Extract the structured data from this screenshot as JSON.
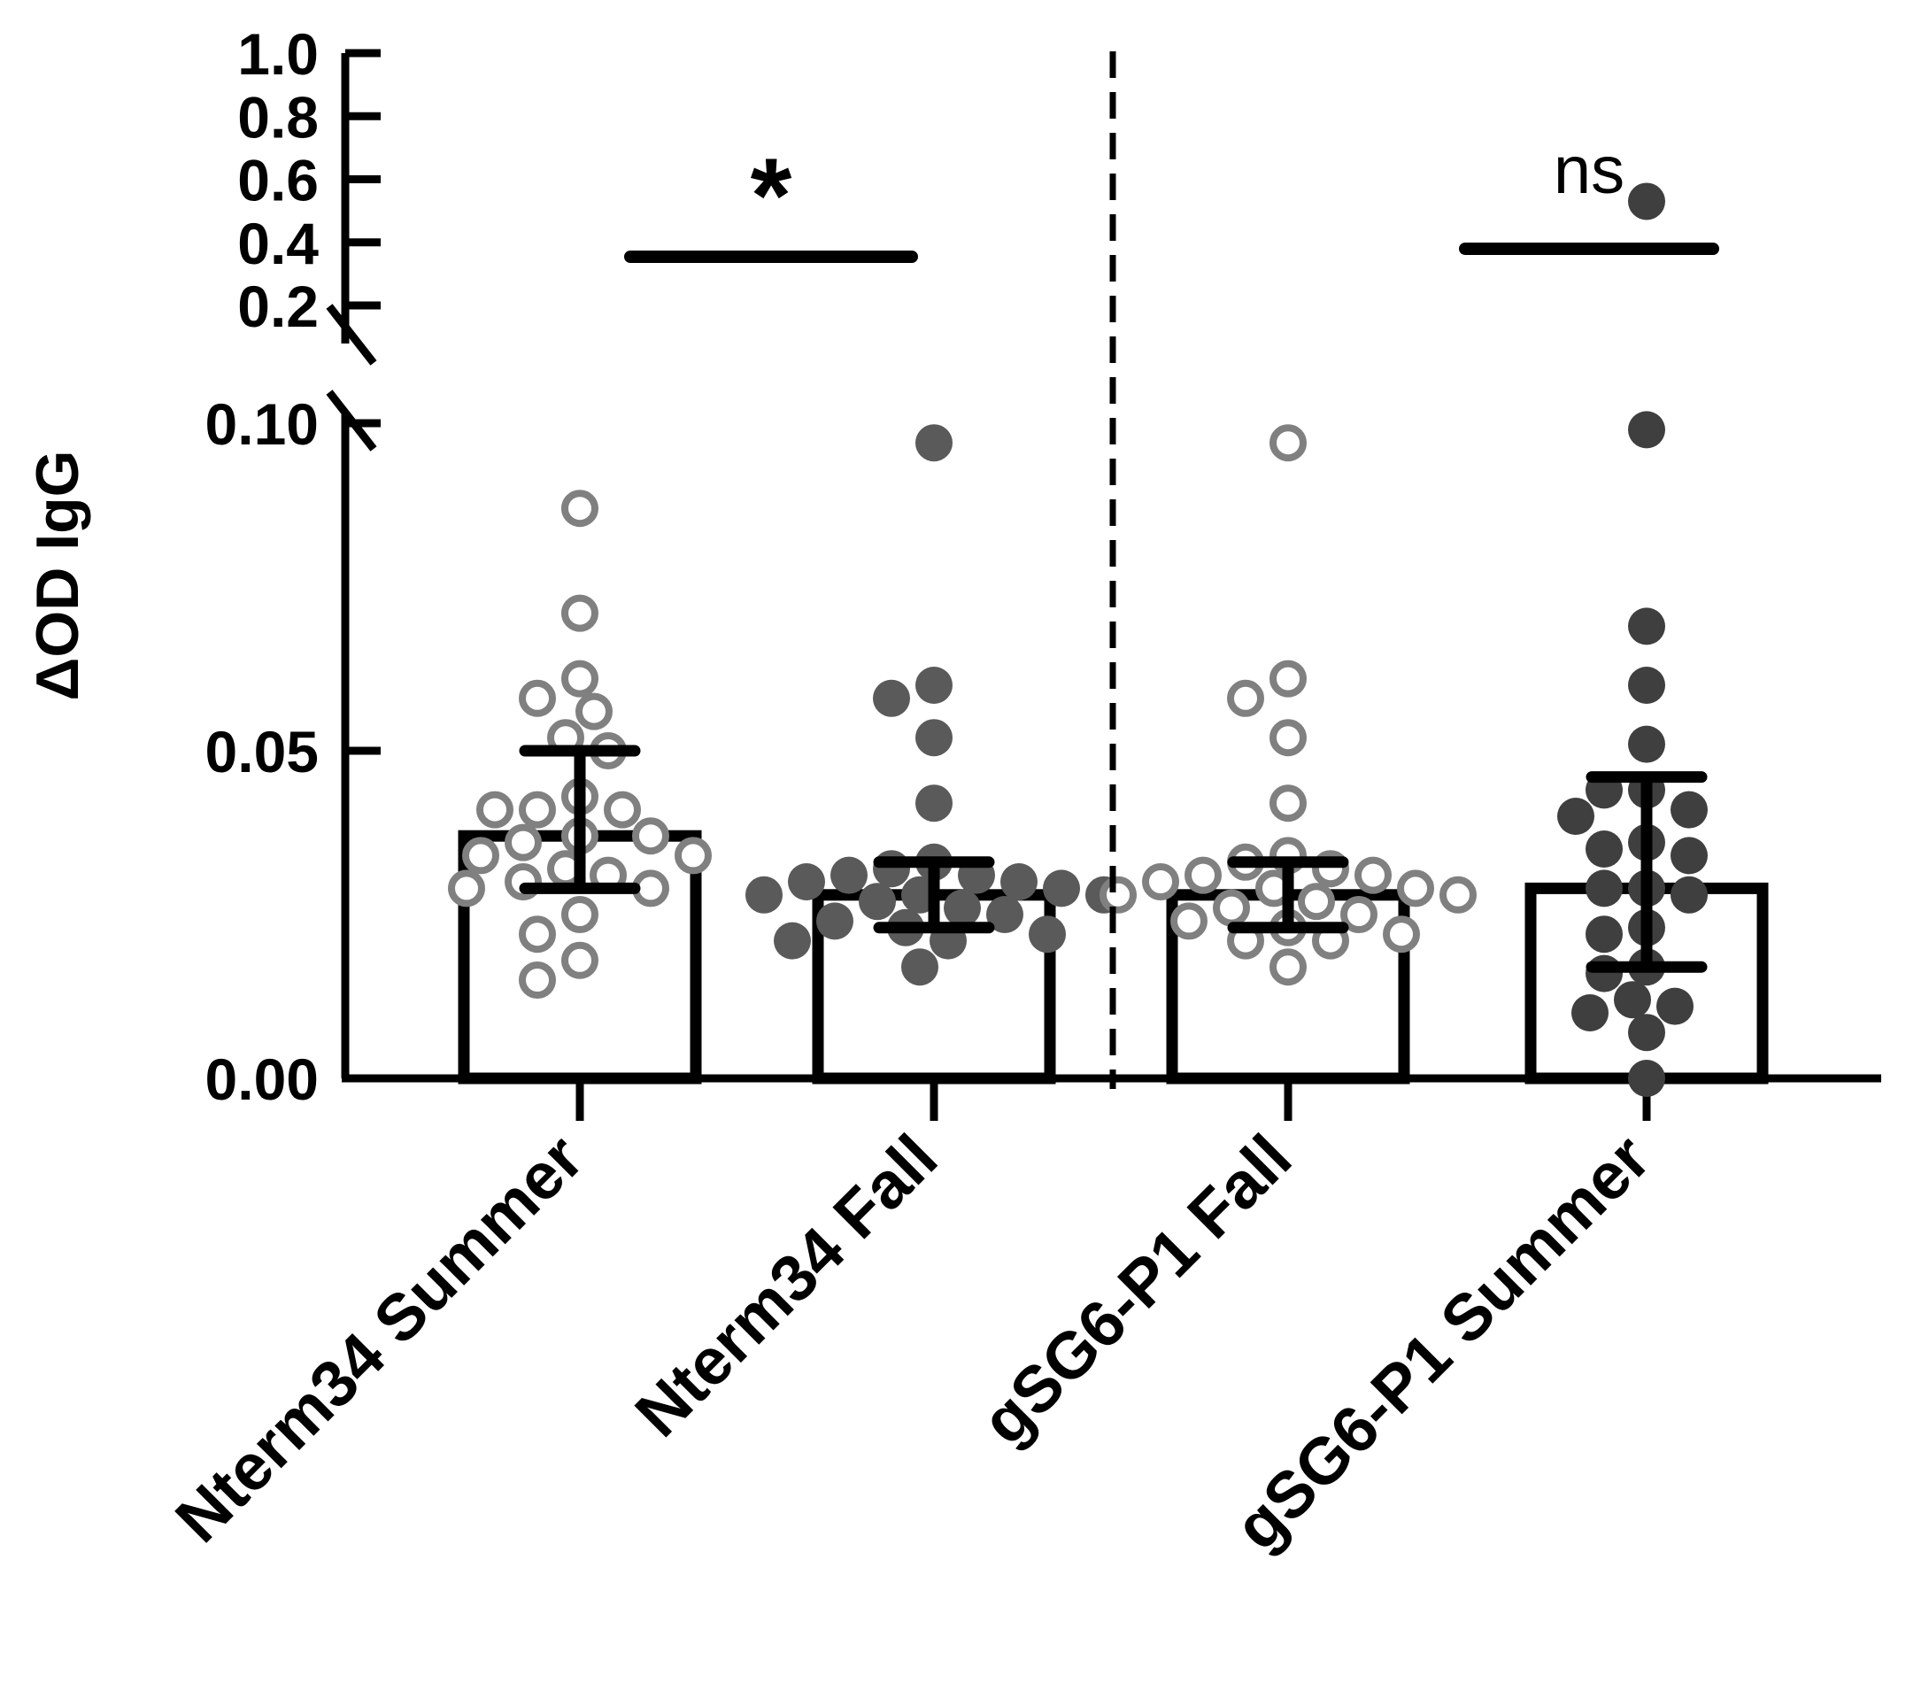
{
  "chart_data": {
    "type": "bar",
    "ylabel": "ΔOD IgG",
    "xlabel": "",
    "title": "",
    "categories": [
      "Nterm34 Summer",
      "Nterm34 Fall",
      "gSG6-P1 Fall",
      "gSG6-P1 Summer"
    ],
    "y_axis": {
      "broken": true,
      "lower_segment": {
        "ylim": [
          0,
          0.1
        ],
        "ticks": [
          "0.00",
          "0.05",
          "0.10"
        ]
      },
      "upper_segment": {
        "ylim": [
          0.2,
          1.0
        ],
        "ticks": [
          "0.2",
          "0.4",
          "0.6",
          "0.8",
          "1.0"
        ]
      }
    },
    "bars": [
      {
        "category": "Nterm34 Summer",
        "mean": 0.037,
        "error_low": 0.029,
        "error_high": 0.05,
        "marker": "open",
        "color": "#808080"
      },
      {
        "category": "Nterm34 Fall",
        "mean": 0.028,
        "error_low": 0.023,
        "error_high": 0.033,
        "marker": "filled",
        "color": "#5a5a5a"
      },
      {
        "category": "gSG6-P1 Fall",
        "mean": 0.028,
        "error_low": 0.023,
        "error_high": 0.033,
        "marker": "open",
        "color": "#808080"
      },
      {
        "category": "gSG6-P1 Summer",
        "mean": 0.029,
        "error_low": 0.017,
        "error_high": 0.046,
        "marker": "filled",
        "color": "#3f3f3f"
      }
    ],
    "points": [
      [
        0.087,
        0.071,
        0.061,
        0.058,
        0.056,
        0.052,
        0.05,
        0.043,
        0.041,
        0.041,
        0.041,
        0.037,
        0.037,
        0.036,
        0.034,
        0.034,
        0.032,
        0.031,
        0.03,
        0.029,
        0.029,
        0.025,
        0.022,
        0.018,
        0.015
      ],
      [
        0.097,
        0.06,
        0.058,
        0.052,
        0.042,
        0.033,
        0.032,
        0.031,
        0.031,
        0.03,
        0.03,
        0.029,
        0.028,
        0.028,
        0.028,
        0.027,
        0.026,
        0.025,
        0.024,
        0.023,
        0.022,
        0.021,
        0.021,
        0.017
      ],
      [
        0.097,
        0.061,
        0.058,
        0.052,
        0.042,
        0.034,
        0.033,
        0.032,
        0.031,
        0.031,
        0.03,
        0.029,
        0.029,
        0.028,
        0.028,
        0.027,
        0.026,
        0.025,
        0.024,
        0.023,
        0.022,
        0.021,
        0.021,
        0.017
      ],
      [
        0.53,
        0.099,
        0.069,
        0.06,
        0.051,
        0.044,
        0.044,
        0.041,
        0.04,
        0.036,
        0.035,
        0.034,
        0.029,
        0.029,
        0.028,
        0.023,
        0.022,
        0.017,
        0.016,
        0.012,
        0.011,
        0.01,
        0.007,
        0.0
      ]
    ],
    "comparisons": [
      {
        "groups": [
          "Nterm34 Summer",
          "Nterm34 Fall"
        ],
        "label": "*"
      },
      {
        "groups": [
          "gSG6-P1 Fall",
          "gSG6-P1 Summer"
        ],
        "label": "ns"
      }
    ],
    "divider": "dashed vertical line between Nterm34 Fall and gSG6-P1 Fall"
  }
}
